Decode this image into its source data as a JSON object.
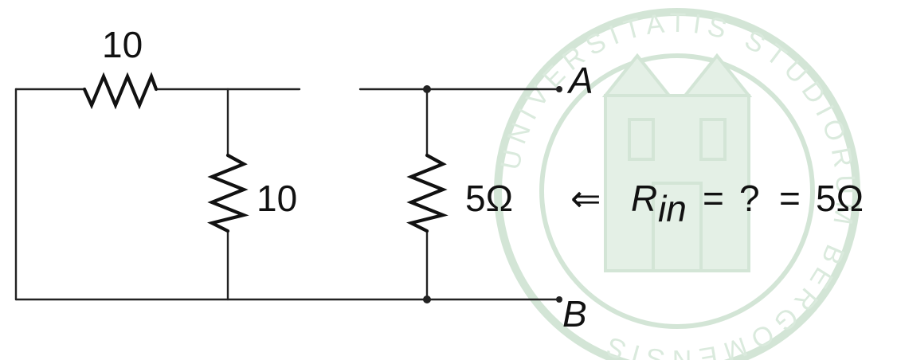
{
  "labels": {
    "top_resistor": "10",
    "middle_resistor": "10",
    "right_resistor": "5Ω",
    "terminal_a": "A",
    "terminal_b": "B"
  },
  "equation": {
    "arrow": "⇐",
    "r": "R",
    "sub": "in",
    "eq1": "=",
    "unknown": "?",
    "eq2": "=",
    "result": "5Ω"
  },
  "watermark": {
    "kind": "university-seal-watermark",
    "text": "UNIVERSITATIS STUDIORUM BERGOMENSIS",
    "color": "#cfe3d2"
  },
  "colors": {
    "ink": "#111111",
    "watermark": "#cfe3d2"
  }
}
